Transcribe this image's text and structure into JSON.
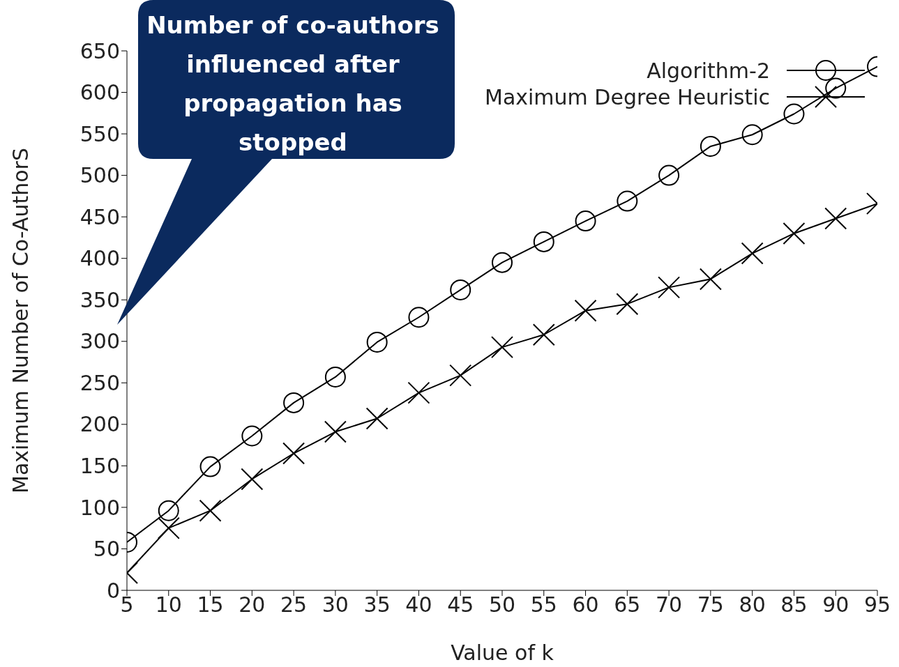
{
  "chart_data": {
    "type": "line",
    "xlabel": "Value of k",
    "ylabel": "Maximum Number of Co-AuthorS",
    "x": [
      5,
      10,
      15,
      20,
      25,
      30,
      35,
      40,
      45,
      50,
      55,
      60,
      65,
      70,
      75,
      80,
      85,
      90,
      95
    ],
    "series": [
      {
        "name": "Algorithm-2",
        "color": "#000000",
        "marker": "circle",
        "values": [
          58,
          96,
          149,
          186,
          226,
          257,
          299,
          329,
          362,
          395,
          420,
          445,
          469,
          500,
          535,
          549,
          574,
          605,
          631
        ]
      },
      {
        "name": "Maximum Degree Heuristic",
        "color": "#000000",
        "marker": "cross",
        "values": [
          21,
          75,
          96,
          134,
          165,
          191,
          207,
          238,
          259,
          293,
          308,
          337,
          345,
          365,
          375,
          406,
          430,
          448,
          466
        ]
      }
    ],
    "xlim": [
      5,
      95
    ],
    "xticks": [
      5,
      10,
      15,
      20,
      25,
      30,
      35,
      40,
      45,
      50,
      55,
      60,
      65,
      70,
      75,
      80,
      85,
      90,
      95
    ],
    "ylim": [
      0,
      650
    ],
    "yticks": [
      0,
      50,
      100,
      150,
      200,
      250,
      300,
      350,
      400,
      450,
      500,
      550,
      600,
      650
    ],
    "grid": false,
    "legend": "top right",
    "line_style": "solid",
    "annotations": [
      "Number of co-authors influenced after propagation has stopped"
    ]
  }
}
